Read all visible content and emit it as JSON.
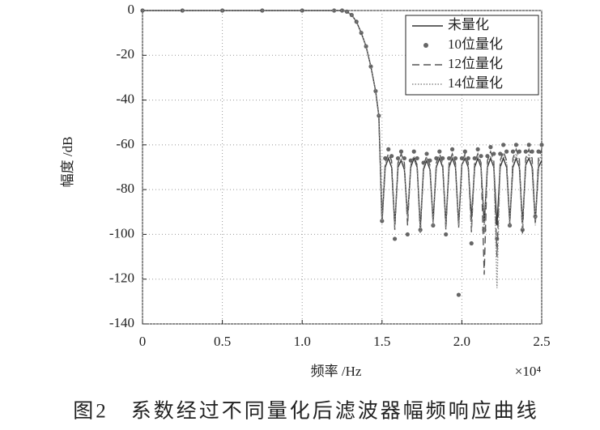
{
  "chart_data": {
    "type": "line",
    "caption": "图2　系数经过不同量化后滤波器幅频响应曲线",
    "x_label": "频率 /Hz",
    "y_label": "幅度 /dB",
    "x_multiplier": "×10⁴",
    "xlim": [
      0,
      2.5
    ],
    "xticks": [
      0,
      0.5,
      {
        "value": 1,
        "label": "1.0"
      },
      1.5,
      {
        "value": 2,
        "label": "2.0"
      },
      2.5
    ],
    "ylim": [
      -140,
      0
    ],
    "yticks": [
      -140,
      -120,
      -100,
      -80,
      -60,
      -40,
      -20,
      0
    ],
    "grid": true,
    "legend": "upper right",
    "x": [
      0,
      0.25,
      0.5,
      0.75,
      1,
      1.2,
      1.25,
      1.28,
      1.31,
      1.34,
      1.37,
      1.4,
      1.43,
      1.46,
      1.48,
      1.5,
      1.52,
      1.54,
      1.56,
      1.58,
      1.6,
      1.62,
      1.64,
      1.66,
      1.68,
      1.7,
      1.72,
      1.74,
      1.76,
      1.78,
      1.8,
      1.82,
      1.84,
      1.86,
      1.88,
      1.9,
      1.92,
      1.94,
      1.96,
      1.98,
      2,
      2.02,
      2.04,
      2.06,
      2.08,
      2.1,
      2.12,
      2.14,
      2.16,
      2.18,
      2.2,
      2.22,
      2.24,
      2.26,
      2.28,
      2.3,
      2.32,
      2.34,
      2.36,
      2.38,
      2.4,
      2.42,
      2.44,
      2.46,
      2.48,
      2.5
    ],
    "series": [
      {
        "name": "未量化",
        "color": "#333333",
        "style": "solid",
        "values": [
          0,
          0,
          0,
          0,
          0,
          0,
          0,
          -0.5,
          -2,
          -5,
          -10,
          -16,
          -25,
          -36,
          -47,
          -95,
          -70,
          -66,
          -70,
          -96,
          -70,
          -67,
          -71,
          -92,
          -70,
          -66,
          -70,
          -97,
          -71,
          -67,
          -71,
          -94,
          -70,
          -66,
          -70,
          -95,
          -70,
          -66,
          -70,
          -96,
          -69,
          -66,
          -70,
          -93,
          -70,
          -66,
          -70,
          -95,
          -70,
          -66,
          -70,
          -96,
          -70,
          -66,
          -70,
          -94,
          -70,
          -66,
          -70,
          -95,
          -69,
          -66,
          -70,
          -95,
          -70,
          -67
        ]
      },
      {
        "name": "10位量化",
        "color": "#666666",
        "style": "dots",
        "values": [
          0,
          0,
          0,
          0,
          0,
          0,
          0,
          -0.5,
          -2,
          -5,
          -10,
          -16,
          -25,
          -36,
          -47,
          -94,
          -66,
          -62,
          -65,
          -102,
          -66,
          -63,
          -66,
          -100,
          -67,
          -63,
          -66,
          -98,
          -68,
          -64,
          -67,
          -96,
          -66,
          -63,
          -66,
          -100,
          -66,
          -62,
          -66,
          -127,
          -66,
          -63,
          -66,
          -104,
          -66,
          -62,
          -65,
          -98,
          -65,
          -61,
          -64,
          -102,
          -64,
          -60,
          -63,
          -96,
          -63,
          -60,
          -63,
          -98,
          -63,
          -60,
          -63,
          -92,
          -63,
          -60
        ]
      },
      {
        "name": "12位量化",
        "color": "#555555",
        "style": "dashed",
        "values": [
          0,
          0,
          0,
          0,
          0,
          0,
          0,
          -0.5,
          -2,
          -5,
          -10,
          -16,
          -25,
          -36,
          -47,
          -93,
          -68,
          -64,
          -67,
          -98,
          -68,
          -64,
          -68,
          -96,
          -69,
          -65,
          -69,
          -100,
          -69,
          -65,
          -69,
          -95,
          -68,
          -64,
          -68,
          -98,
          -68,
          -64,
          -68,
          -97,
          -68,
          -64,
          -68,
          -99,
          -68,
          -64,
          -68,
          -118,
          -67,
          -63,
          -67,
          -110,
          -67,
          -63,
          -67,
          -96,
          -66,
          -62,
          -66,
          -100,
          -66,
          -62,
          -66,
          -95,
          -66,
          -62
        ]
      },
      {
        "name": "14位量化",
        "color": "#888888",
        "style": "dotted",
        "values": [
          0,
          0,
          0,
          0,
          0,
          0,
          0,
          -0.5,
          -2,
          -5,
          -10,
          -16,
          -25,
          -36,
          -47,
          -94,
          -69,
          -65,
          -69,
          -97,
          -69,
          -66,
          -70,
          -93,
          -69,
          -65,
          -69,
          -99,
          -70,
          -66,
          -70,
          -96,
          -69,
          -65,
          -69,
          -97,
          -69,
          -65,
          -69,
          -96,
          -69,
          -65,
          -69,
          -98,
          -69,
          -65,
          -69,
          -100,
          -69,
          -65,
          -69,
          -124,
          -68,
          -64,
          -68,
          -97,
          -68,
          -64,
          -68,
          -98,
          -68,
          -64,
          -68,
          -96,
          -68,
          -64
        ]
      }
    ]
  }
}
